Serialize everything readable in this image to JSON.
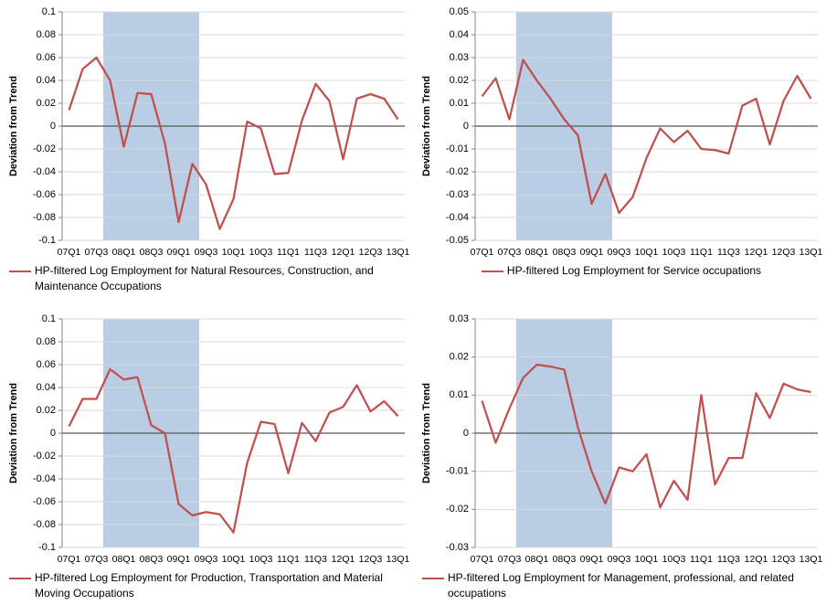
{
  "chart_data": [
    {
      "type": "line",
      "y_label": "Deviation from Trend",
      "categories": [
        "07Q1",
        null,
        "07Q3",
        null,
        "08Q1",
        null,
        "08Q3",
        null,
        "09Q1",
        null,
        "09Q3",
        null,
        "10Q1",
        null,
        "10Q3",
        null,
        "11Q1",
        null,
        "11Q3",
        null,
        "12Q1",
        null,
        "12Q3",
        null,
        "13Q1"
      ],
      "series": [
        {
          "name": "HP-filtered Log Employment for Natural Resources, Construction, and Maintenance Occupations",
          "color": "#c0504d",
          "values": [
            0.014,
            0.05,
            0.06,
            0.04,
            -0.018,
            0.029,
            0.028,
            -0.015,
            -0.084,
            -0.033,
            -0.051,
            -0.09,
            -0.064,
            0.004,
            -0.002,
            -0.042,
            -0.041,
            0.005,
            0.037,
            0.022,
            -0.029,
            0.024,
            0.028,
            0.024,
            0.006
          ]
        }
      ],
      "ylim": [
        -0.1,
        0.1
      ],
      "yticks": [
        -0.1,
        -0.08,
        -0.06,
        -0.04,
        -0.02,
        0,
        0.02,
        0.04,
        0.06,
        0.08,
        0.1
      ],
      "grid": true,
      "shade": [
        3,
        10
      ],
      "shade_color": "#b9cde5"
    },
    {
      "type": "line",
      "y_label": "Deviation from Trend",
      "categories": [
        "07Q1",
        null,
        "07Q3",
        null,
        "08Q1",
        null,
        "08Q3",
        null,
        "09Q1",
        null,
        "09Q3",
        null,
        "10Q1",
        null,
        "10Q3",
        null,
        "11Q1",
        null,
        "11Q3",
        null,
        "12Q1",
        null,
        "12Q3",
        null,
        "13Q1"
      ],
      "series": [
        {
          "name": "HP-filtered Log Employment for Service occupations",
          "color": "#c0504d",
          "values": [
            0.013,
            0.021,
            0.003,
            0.029,
            0.02,
            0.012,
            0.003,
            -0.004,
            -0.034,
            -0.021,
            -0.038,
            -0.031,
            -0.014,
            -0.001,
            -0.007,
            -0.002,
            -0.01,
            -0.0105,
            -0.012,
            0.009,
            0.012,
            -0.008,
            0.011,
            0.022,
            0.012
          ]
        }
      ],
      "ylim": [
        -0.05,
        0.05
      ],
      "yticks": [
        -0.05,
        -0.04,
        -0.03,
        -0.02,
        -0.01,
        0,
        0.01,
        0.02,
        0.03,
        0.04,
        0.05
      ],
      "grid": true,
      "shade": [
        3,
        10
      ],
      "shade_color": "#b9cde5"
    },
    {
      "type": "line",
      "y_label": "Deviation from Trend",
      "categories": [
        "07Q1",
        null,
        "07Q3",
        null,
        "08Q1",
        null,
        "08Q3",
        null,
        "09Q1",
        null,
        "09Q3",
        null,
        "10Q1",
        null,
        "10Q3",
        null,
        "11Q1",
        null,
        "11Q3",
        null,
        "12Q1",
        null,
        "12Q3",
        null,
        "13Q1"
      ],
      "series": [
        {
          "name": "HP-filtered Log Employment for Production, Transportation and Material Moving Occupations",
          "color": "#c0504d",
          "values": [
            0.006,
            0.03,
            0.03,
            0.056,
            0.047,
            0.049,
            0.007,
            0.0,
            -0.062,
            -0.072,
            -0.069,
            -0.071,
            -0.087,
            -0.026,
            0.01,
            0.008,
            -0.035,
            0.009,
            -0.007,
            0.018,
            0.023,
            0.042,
            0.019,
            0.028,
            0.015
          ]
        }
      ],
      "ylim": [
        -0.1,
        0.1
      ],
      "yticks": [
        -0.1,
        -0.08,
        -0.06,
        -0.04,
        -0.02,
        0,
        0.02,
        0.04,
        0.06,
        0.08,
        0.1
      ],
      "grid": true,
      "shade": [
        3,
        10
      ],
      "shade_color": "#b9cde5"
    },
    {
      "type": "line",
      "y_label": "Deviation from Trend",
      "categories": [
        "07Q1",
        null,
        "07Q3",
        null,
        "08Q1",
        null,
        "08Q3",
        null,
        "09Q1",
        null,
        "09Q3",
        null,
        "10Q1",
        null,
        "10Q3",
        null,
        "11Q1",
        null,
        "11Q3",
        null,
        "12Q1",
        null,
        "12Q3",
        null,
        "13Q1"
      ],
      "series": [
        {
          "name": "HP-filtered Log Employment for Management, professional, and related occupations",
          "color": "#c0504d",
          "values": [
            0.0085,
            -0.0025,
            0.0065,
            0.0145,
            0.018,
            0.0175,
            0.0167,
            0.0015,
            -0.01,
            -0.0185,
            -0.009,
            -0.01,
            -0.0055,
            -0.0195,
            -0.0125,
            -0.0175,
            0.01,
            -0.0135,
            -0.0065,
            -0.0065,
            0.0105,
            0.004,
            0.013,
            0.0115,
            0.0108
          ]
        }
      ],
      "ylim": [
        -0.03,
        0.03
      ],
      "yticks": [
        -0.03,
        -0.02,
        -0.01,
        0,
        0.01,
        0.02,
        0.03
      ],
      "grid": true,
      "shade": [
        3,
        10
      ],
      "shade_color": "#b9cde5"
    }
  ]
}
